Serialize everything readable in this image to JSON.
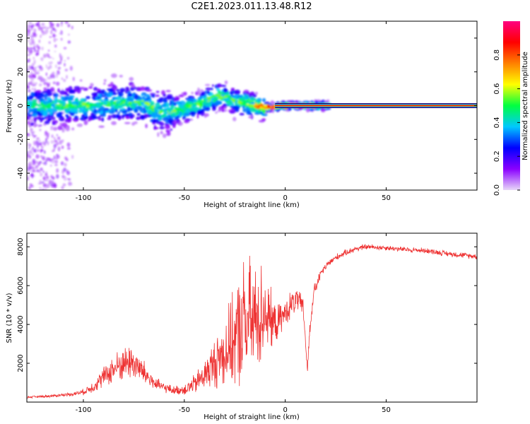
{
  "title": "C2E1.2023.011.13.48.R12",
  "chart_data": [
    {
      "type": "heatmap",
      "xlabel": "Height of straight line (km)",
      "ylabel": "Frequency (Hz)",
      "xlim": [
        -128,
        95
      ],
      "ylim": [
        -50,
        50
      ],
      "xticks": [
        -100,
        -50,
        0,
        50
      ],
      "yticks": [
        -40,
        -20,
        0,
        20,
        40
      ],
      "colorbar": {
        "label": "Normalized spectral amplitude",
        "range": [
          0,
          1
        ],
        "ticks": [
          "0.0",
          "0.2",
          "0.4",
          "0.6",
          "0.8"
        ],
        "colors": [
          "#e8d8f8",
          "#8a00ff",
          "#0000ff",
          "#00c8ff",
          "#00ff40",
          "#ffff00",
          "#ff8000",
          "#ff0000",
          "#ff0080"
        ]
      },
      "ridge": {
        "x": [
          -128,
          -110,
          -95,
          -80,
          -70,
          -62,
          -55,
          -48,
          -42,
          -37,
          -33,
          -30,
          -26,
          -22,
          -18,
          -14,
          -10,
          -6,
          -2,
          2,
          6,
          10,
          20,
          40,
          95
        ],
        "y": [
          0,
          0,
          0.5,
          1.5,
          1.5,
          -4,
          -3,
          -1,
          1,
          4,
          6,
          5,
          3,
          2,
          1,
          0,
          -1,
          -1,
          0,
          0,
          0,
          0,
          0,
          0,
          0
        ]
      },
      "grid": false
    },
    {
      "type": "line",
      "xlabel": "Height of straight line (km)",
      "ylabel": "SNR (10 * v/v)",
      "xlim": [
        -128,
        95
      ],
      "ylim": [
        0,
        8700
      ],
      "xticks": [
        -100,
        -50,
        0,
        50
      ],
      "yticks": [
        2000,
        4000,
        6000,
        8000
      ],
      "series": [
        {
          "color": "#ee3333",
          "envelope": {
            "x": [
              -128,
              -115,
              -105,
              -100,
              -95,
              -90,
              -85,
              -80,
              -76,
              -72,
              -68,
              -64,
              -60,
              -55,
              -50,
              -45,
              -40,
              -35,
              -30,
              -25,
              -22,
              -20,
              -18,
              -15,
              -12,
              -10,
              -8,
              -5,
              -2,
              0,
              3,
              6,
              9,
              11,
              12,
              14,
              18,
              22,
              26,
              30,
              35,
              40,
              50,
              60,
              70,
              80,
              95
            ],
            "base": [
              250,
              320,
              420,
              520,
              800,
              1300,
              1700,
              2000,
              2100,
              1700,
              1300,
              900,
              750,
              600,
              650,
              900,
              1400,
              2000,
              2600,
              3200,
              3800,
              4000,
              4100,
              4200,
              4500,
              4800,
              4300,
              4000,
              4300,
              4600,
              5000,
              5300,
              4800,
              1600,
              3500,
              5600,
              6700,
              7200,
              7500,
              7700,
              7900,
              8000,
              7950,
              7850,
              7800,
              7650,
              7500
            ],
            "noise": [
              60,
              80,
              120,
              180,
              350,
              600,
              900,
              1000,
              1100,
              900,
              600,
              400,
              300,
              250,
              350,
              600,
              900,
              1500,
              2200,
              2800,
              3800,
              4000,
              3900,
              3500,
              3200,
              2500,
              2000,
              1200,
              900,
              700,
              900,
              700,
              600,
              300,
              500,
              450,
              250,
              220,
              200,
              180,
              180,
              170,
              160,
              160,
              160,
              170,
              170
            ]
          }
        }
      ],
      "grid": false
    }
  ]
}
